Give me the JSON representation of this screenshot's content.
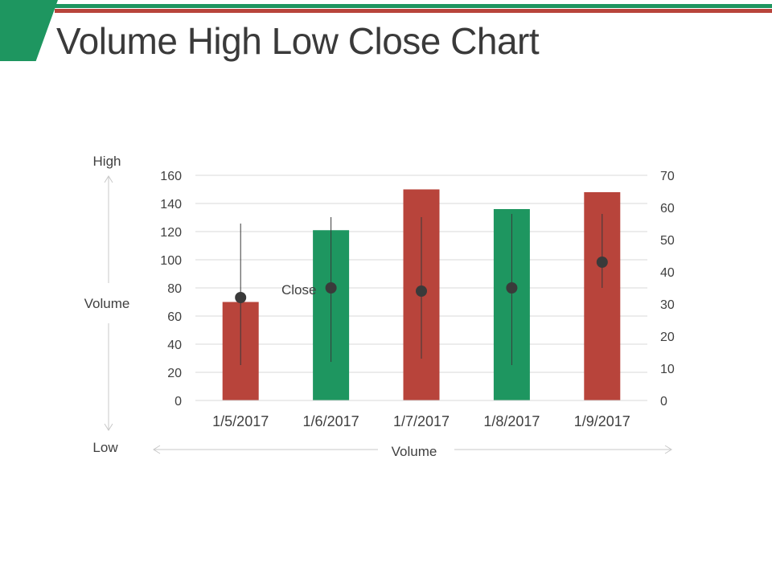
{
  "slide": {
    "title": "Volume High Low Close Chart"
  },
  "colors": {
    "accent_green": "#1e9660",
    "accent_red": "#b8443b",
    "marker": "#3a3a3a",
    "gridline": "#d9d9d9",
    "arrow": "#c8c8c8"
  },
  "chart_data": {
    "type": "bar",
    "categories": [
      "1/5/2017",
      "1/6/2017",
      "1/7/2017",
      "1/8/2017",
      "1/9/2017"
    ],
    "volume": {
      "values": [
        70,
        121,
        150,
        136,
        148
      ],
      "colors": [
        "#b8443b",
        "#1e9660",
        "#b8443b",
        "#1e9660",
        "#b8443b"
      ],
      "axis": "left",
      "ylim": [
        0,
        160
      ],
      "ticks": [
        0,
        20,
        40,
        60,
        80,
        100,
        120,
        140,
        160
      ]
    },
    "high_low_close": {
      "axis": "right",
      "ylim": [
        0,
        70
      ],
      "ticks": [
        0,
        10,
        20,
        30,
        40,
        50,
        60,
        70
      ],
      "high": [
        55,
        57,
        57,
        58,
        58
      ],
      "low": [
        11,
        12,
        13,
        11,
        35
      ],
      "close": [
        32,
        35,
        34,
        35,
        43
      ]
    },
    "data_label": "Close",
    "annotations": {
      "high": "High",
      "low": "Low",
      "y_axis": "Volume",
      "x_axis": "Volume"
    },
    "grid": true
  }
}
